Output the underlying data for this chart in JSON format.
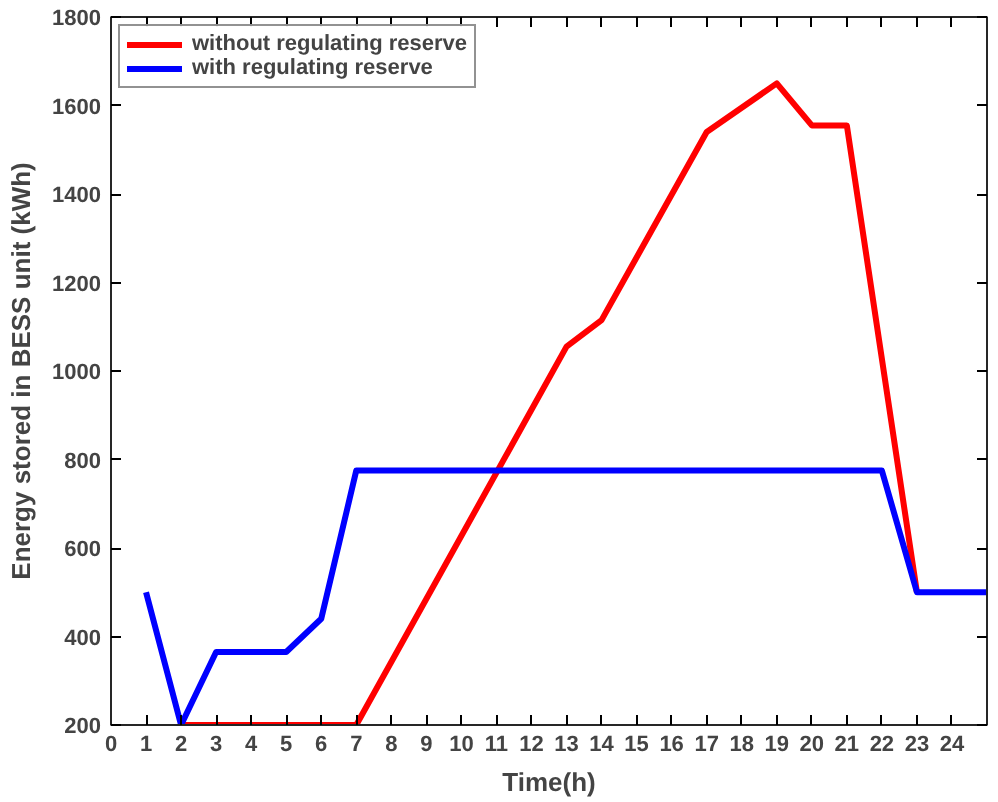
{
  "chart_data": {
    "type": "line",
    "xlabel": "Time(h)",
    "ylabel": "Energy stored in BESS unit (kWh)",
    "xlim": [
      0,
      25
    ],
    "xticks": [
      0,
      1,
      2,
      3,
      4,
      5,
      6,
      7,
      8,
      9,
      10,
      11,
      12,
      13,
      14,
      15,
      16,
      17,
      18,
      19,
      20,
      21,
      22,
      23,
      24
    ],
    "ylim": [
      200,
      1800
    ],
    "yticks": [
      200,
      400,
      600,
      800,
      1000,
      1200,
      1400,
      1600,
      1800
    ],
    "grid": false,
    "legend": "top left",
    "marker": "none",
    "line_style": "solid",
    "series": [
      {
        "name": "without regulating reserve",
        "color": "#ff0000",
        "x": [
          2,
          7,
          13,
          14,
          17,
          19,
          20,
          21,
          23
        ],
        "values": [
          200,
          200,
          1055,
          1115,
          1540,
          1650,
          1555,
          1555,
          500
        ]
      },
      {
        "name": "with regulating reserve",
        "color": "#0000ff",
        "x": [
          1,
          2,
          3,
          5,
          6,
          7,
          22,
          23,
          25
        ],
        "values": [
          500,
          200,
          365,
          365,
          440,
          775,
          775,
          500,
          500
        ]
      }
    ]
  }
}
